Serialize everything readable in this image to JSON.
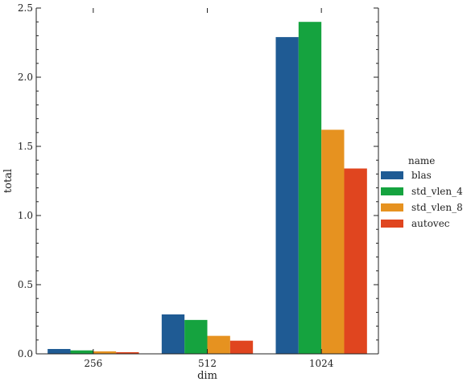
{
  "chart_data": {
    "type": "bar",
    "xlabel": "dim",
    "ylabel": "total",
    "categories": [
      "256",
      "512",
      "1024"
    ],
    "ylim": [
      0,
      2.5
    ],
    "yticks": [
      0.0,
      0.5,
      1.0,
      1.5,
      2.0,
      2.5
    ],
    "ytick_labels": [
      "0.0",
      "0.5",
      "1.0",
      "1.5",
      "2.0",
      "2.5"
    ],
    "grid": false,
    "legend": {
      "title": "name",
      "position": "right"
    },
    "series": [
      {
        "name": "blas",
        "color": "#1f5b94",
        "values": [
          0.035,
          0.285,
          2.29
        ]
      },
      {
        "name": "std_vlen_4",
        "color": "#15a33f",
        "values": [
          0.025,
          0.245,
          2.4
        ]
      },
      {
        "name": "std_vlen_8",
        "color": "#e69220",
        "values": [
          0.018,
          0.13,
          1.62
        ]
      },
      {
        "name": "autovec",
        "color": "#e0451f",
        "values": [
          0.012,
          0.095,
          1.34
        ]
      }
    ]
  }
}
